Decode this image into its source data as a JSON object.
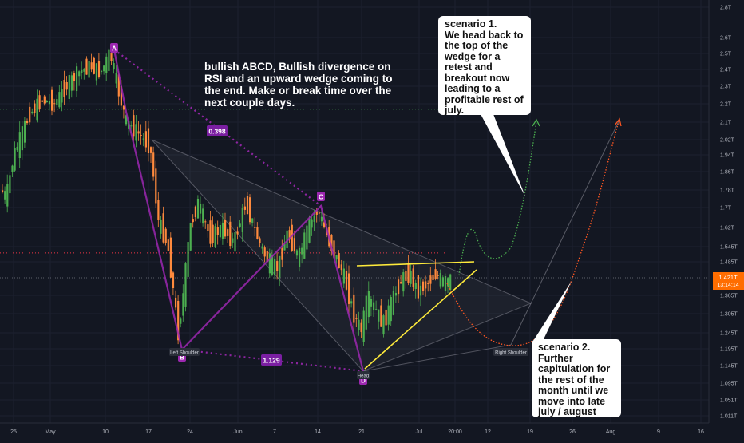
{
  "chart_data": {
    "type": "candlestick",
    "title": "",
    "x_axis": {
      "tick_labels": [
        "25",
        "May",
        "10",
        "17",
        "24",
        "Jun",
        "7",
        "14",
        "21",
        "Jul",
        "20:00",
        "12",
        "19",
        "26",
        "Aug",
        "9",
        "16"
      ]
    },
    "y_axis": {
      "scale": "log",
      "tick_labels": [
        "2.8T",
        "2.6T",
        "2.5T",
        "2.4T",
        "2.3T",
        "2.2T",
        "2.1T",
        "2.02T",
        "1.94T",
        "1.86T",
        "1.78T",
        "1.7T",
        "1.62T",
        "1.545T",
        "1.485T",
        "1.365T",
        "1.305T",
        "1.245T",
        "1.195T",
        "1.145T",
        "1.095T",
        "1.051T",
        "1.011T"
      ],
      "range": [
        "1.011T",
        "2.8T"
      ]
    },
    "current_price": {
      "value": "1.421T",
      "countdown": "13:14:14",
      "color": "#ff6d00"
    },
    "pattern_points": [
      {
        "label": "A",
        "value": 2.52
      },
      {
        "label": "B",
        "value": 1.195
      },
      {
        "label": "C",
        "value": 1.73
      },
      {
        "label": "D",
        "value": 1.135
      }
    ],
    "ratios": [
      {
        "label": "0.398"
      },
      {
        "label": "1.129"
      }
    ],
    "structure_labels": [
      "Left Shoulder",
      "Head",
      "Right Shoulder"
    ],
    "horizontal_levels": [
      {
        "value": 2.17,
        "color": "#4caf50"
      },
      {
        "value": 1.52,
        "color": "#f23645"
      }
    ],
    "colors": {
      "up_candle": "#4caf50",
      "down_candle": "#ff8a3d",
      "pattern_line": "#9c27b0",
      "wedge_line": "#ffeb3b",
      "bull_projection": "#4caf50",
      "bear_projection": "#ff5722",
      "background": "#131722"
    }
  },
  "annotations": {
    "main_note": "bullish ABCD, Bullish divergence on RSI and an upward wedge coming to the end. Make or break time over the next couple days.",
    "scenario1": [
      "scenario 1.",
      "We head back to",
      "the top of the",
      "wedge for a",
      "retest and",
      "breakout now",
      "leading to a",
      "profitable rest of",
      "july."
    ],
    "scenario2": [
      "scenario 2.",
      "Further",
      "capitulation for",
      "the rest of the",
      "month until we",
      "move into late",
      "july / august"
    ]
  }
}
